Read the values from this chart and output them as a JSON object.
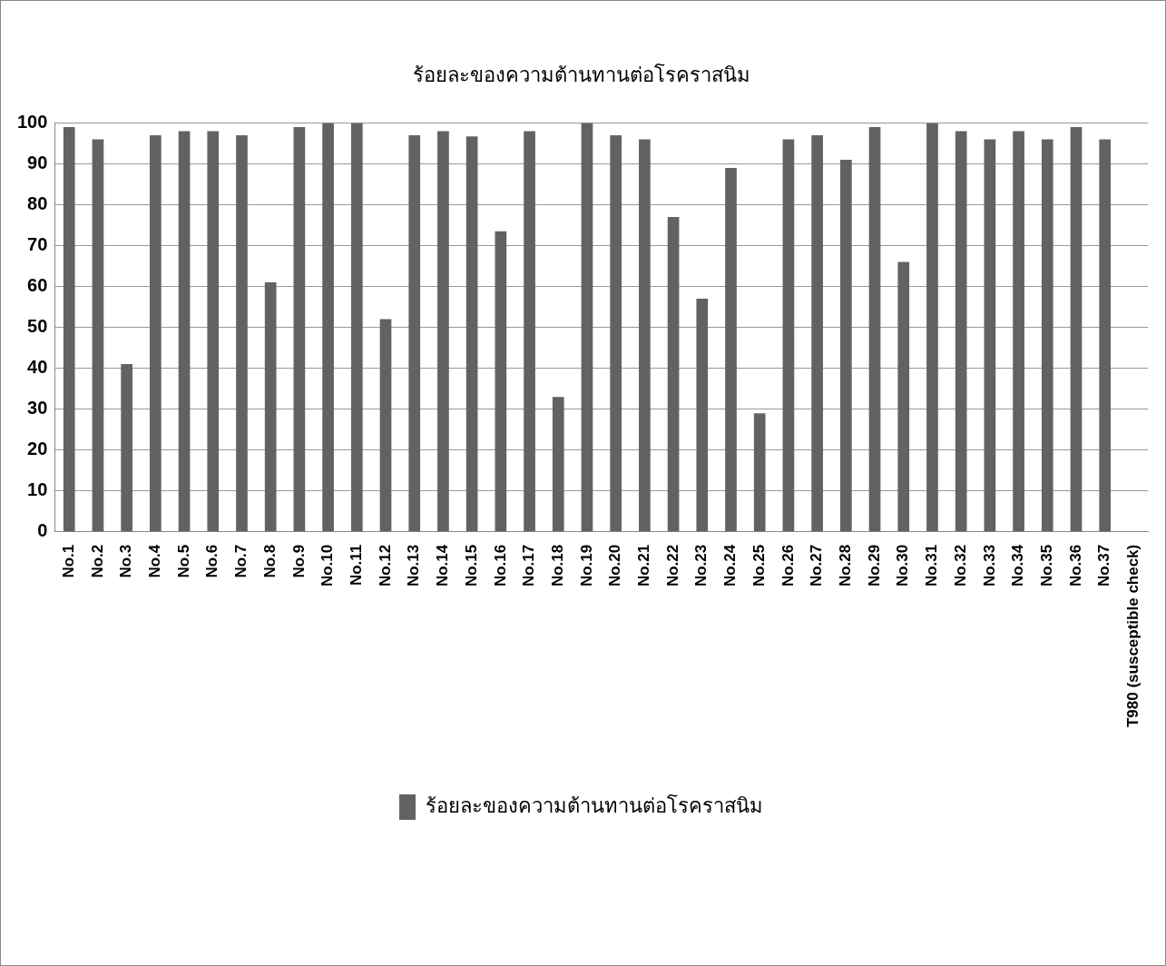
{
  "chart_data": {
    "type": "bar",
    "title": "ร้อยละของความต้านทานต่อโรคราสนิม",
    "categories": [
      "No.1",
      "No.2",
      "No.3",
      "No.4",
      "No.5",
      "No.6",
      "No.7",
      "No.8",
      "No.9",
      "No.10",
      "No.11",
      "No.12",
      "No.13",
      "No.14",
      "No.15",
      "No.16",
      "No.17",
      "No.18",
      "No.19",
      "No.20",
      "No.21",
      "No.22",
      "No.23",
      "No.24",
      "No.25",
      "No.26",
      "No.27",
      "No.28",
      "No.29",
      "No.30",
      "No.31",
      "No.32",
      "No.33",
      "No.34",
      "No.35",
      "No.36",
      "No.37",
      "T980 (susceptible check)"
    ],
    "series": [
      {
        "name": "ร้อยละของความต้านทานต่อโรคราสนิม",
        "color": "#626262",
        "values": [
          99,
          96,
          41,
          97,
          98,
          98,
          97,
          61,
          99,
          100,
          100,
          52,
          97,
          98,
          96.7,
          73.5,
          98,
          33,
          100,
          97,
          96,
          77,
          57,
          89,
          29,
          96,
          97,
          91,
          99,
          66,
          100,
          98,
          96,
          98,
          96,
          99,
          96,
          0
        ]
      }
    ],
    "ylim": [
      0,
      100
    ],
    "yticks": [
      0,
      10,
      20,
      30,
      40,
      50,
      60,
      70,
      80,
      90,
      100
    ],
    "grid": "y",
    "legend": "bottom"
  }
}
